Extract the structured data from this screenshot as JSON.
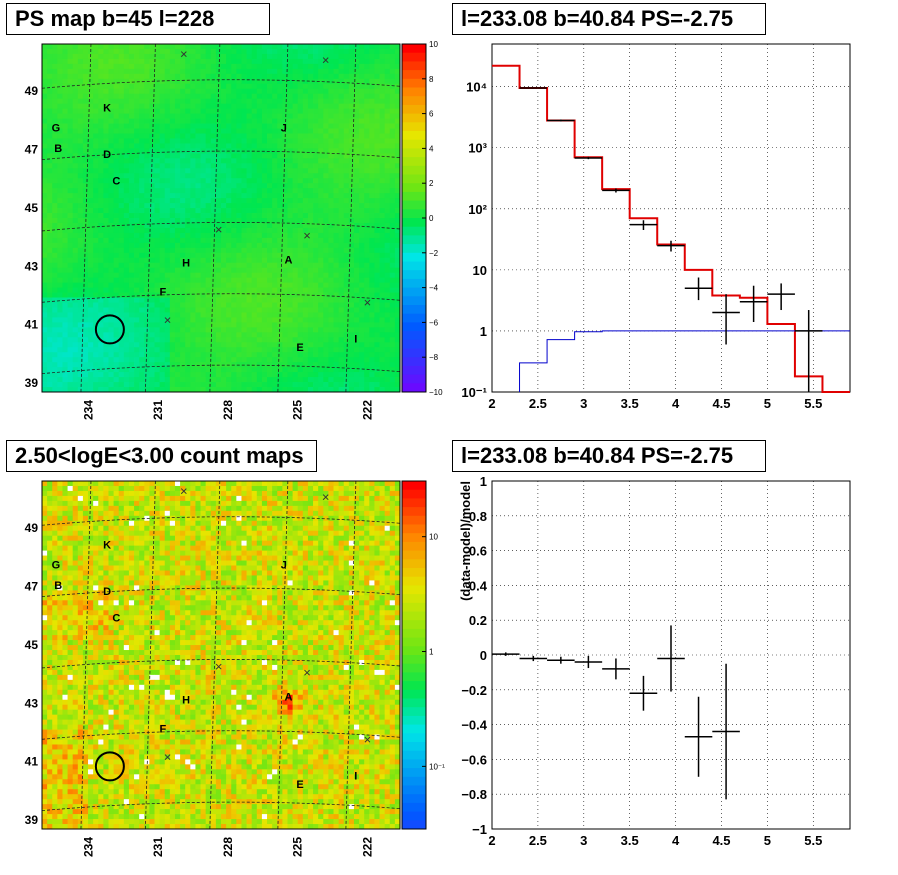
{
  "panels": {
    "map_top": {
      "title": "PS map b=45 l=228",
      "colorbar_ticks": [
        "10",
        "8",
        "6",
        "4",
        "2",
        "0",
        "−2",
        "−4",
        "−6",
        "−8",
        "−10"
      ],
      "y_ticks": [
        "49",
        "47",
        "45",
        "43",
        "41",
        "39"
      ],
      "x_ticks": [
        "234",
        "231",
        "228",
        "225",
        "222"
      ],
      "sources": [
        {
          "label": "K",
          "l": 233.2,
          "b": 48.3
        },
        {
          "label": "G",
          "l": 235.4,
          "b": 47.6
        },
        {
          "label": "B",
          "l": 235.3,
          "b": 46.9
        },
        {
          "label": "D",
          "l": 233.2,
          "b": 46.7
        },
        {
          "label": "C",
          "l": 232.8,
          "b": 45.8
        },
        {
          "label": "J",
          "l": 225.6,
          "b": 47.6
        },
        {
          "label": "H",
          "l": 229.8,
          "b": 43.0
        },
        {
          "label": "A",
          "l": 225.4,
          "b": 43.1
        },
        {
          "label": "F",
          "l": 230.8,
          "b": 42.0
        },
        {
          "label": "E",
          "l": 224.9,
          "b": 40.1
        },
        {
          "label": "I",
          "l": 222.5,
          "b": 40.4
        }
      ],
      "crosses": [
        {
          "l": 229.9,
          "b": 50.1
        },
        {
          "l": 223.8,
          "b": 49.9
        },
        {
          "l": 228.4,
          "b": 44.1
        },
        {
          "l": 224.6,
          "b": 43.9
        },
        {
          "l": 222.0,
          "b": 41.6
        },
        {
          "l": 230.6,
          "b": 41.0
        }
      ],
      "circle": {
        "l": 233.08,
        "b": 40.84
      }
    },
    "map_bottom": {
      "title": "2.50<logE<3.00 count maps",
      "colorbar_ticks": [
        "10",
        "1",
        "10⁻¹"
      ],
      "y_ticks": [
        "49",
        "47",
        "45",
        "43",
        "41",
        "39"
      ],
      "x_ticks": [
        "234",
        "231",
        "228",
        "225",
        "222"
      ]
    },
    "spectrum": {
      "title": "l=233.08 b=40.84 PS=-2.75"
    },
    "residual": {
      "title": "l=233.08 b=40.84 PS=-2.75"
    }
  },
  "chart_data": [
    {
      "type": "heatmap",
      "title": "PS map b=45 l=228",
      "xlabel": "",
      "ylabel": "",
      "xticks": [
        234,
        231,
        228,
        225,
        222
      ],
      "yticks": [
        49,
        47,
        45,
        43,
        41,
        39
      ],
      "colorbar": {
        "range": [
          -10,
          10
        ],
        "ticks": [
          10,
          8,
          6,
          4,
          2,
          0,
          -2,
          -4,
          -6,
          -8,
          -10
        ]
      }
    },
    {
      "type": "line",
      "title": "l=233.08 b=40.84 PS=-2.75",
      "xlabel": "",
      "ylabel": "",
      "xlim": [
        2,
        5.9
      ],
      "ylim": [
        0.1,
        50000
      ],
      "yscale": "log",
      "xticks": [
        2,
        2.5,
        3,
        3.5,
        4,
        4.5,
        5,
        5.5
      ],
      "yticks": [
        "10⁻¹",
        "1",
        "10",
        "10²",
        "10³",
        "10⁴"
      ],
      "series": [
        {
          "color": "#e00000",
          "type": "step",
          "edges": [
            2.0,
            2.3,
            2.6,
            2.9,
            3.2,
            3.5,
            3.8,
            4.1,
            4.4,
            4.7,
            5.0,
            5.3,
            5.6,
            5.9
          ],
          "values": [
            22000,
            9500,
            2800,
            700,
            210,
            70,
            26,
            10,
            3.8,
            3.5,
            1.3,
            0.18,
            0.09
          ]
        },
        {
          "color": "#0000cc",
          "type": "step",
          "edges": [
            2.3,
            2.6,
            2.9,
            3.2,
            3.5,
            3.8,
            4.1,
            4.4,
            4.7,
            5.0,
            5.3,
            5.6,
            5.9
          ],
          "values": [
            0.3,
            0.72,
            0.97,
            1.0,
            1.0,
            1.0,
            1.0,
            1.0,
            1.0,
            1.0,
            1.0,
            1.0
          ]
        },
        {
          "color": "#000000",
          "type": "points",
          "x": [
            2.45,
            2.75,
            3.05,
            3.35,
            3.65,
            3.95,
            4.25,
            4.55,
            4.85,
            5.15,
            5.45
          ],
          "xerr": [
            0.15,
            0.15,
            0.15,
            0.15,
            0.15,
            0.15,
            0.15,
            0.15,
            0.15,
            0.15,
            0.15
          ],
          "y": [
            9500,
            2800,
            680,
            200,
            55,
            25,
            5,
            2,
            3,
            4,
            1
          ],
          "ylo": [
            9300,
            2700,
            650,
            185,
            45,
            20,
            3.2,
            0.6,
            1.4,
            2.2,
            0.1
          ],
          "yhi": [
            9700,
            2900,
            710,
            215,
            65,
            30,
            7.5,
            4,
            5.5,
            6,
            2.2
          ]
        }
      ]
    },
    {
      "type": "heatmap",
      "title": "2.50<logE<3.00 count maps",
      "xlabel": "",
      "ylabel": "",
      "xticks": [
        234,
        231,
        228,
        225,
        222
      ],
      "yticks": [
        49,
        47,
        45,
        43,
        41,
        39
      ],
      "colorbar": {
        "scale": "log",
        "ticks": [
          "10",
          "1",
          "10⁻¹"
        ]
      }
    },
    {
      "type": "scatter",
      "title": "l=233.08 b=40.84 PS=-2.75",
      "xlabel": "",
      "ylabel": "(data-model)/model",
      "xlim": [
        2,
        5.9
      ],
      "ylim": [
        -1,
        1
      ],
      "xticks": [
        2,
        2.5,
        3,
        3.5,
        4,
        4.5,
        5,
        5.5
      ],
      "yticks": [
        1,
        0.8,
        0.6,
        0.4,
        0.2,
        0,
        -0.2,
        -0.4,
        -0.6,
        -0.8,
        -1
      ],
      "points": {
        "x": [
          2.15,
          2.45,
          2.75,
          3.05,
          3.35,
          3.65,
          3.95,
          4.25,
          4.55
        ],
        "xerr": [
          0.15,
          0.15,
          0.15,
          0.15,
          0.15,
          0.15,
          0.15,
          0.15,
          0.15
        ],
        "y": [
          0.005,
          -0.02,
          -0.03,
          -0.04,
          -0.08,
          -0.22,
          -0.02,
          -0.47,
          -0.44
        ],
        "yerr": [
          0.01,
          0.015,
          0.02,
          0.035,
          0.06,
          0.1,
          0.19,
          0.23,
          0.39
        ]
      }
    }
  ]
}
